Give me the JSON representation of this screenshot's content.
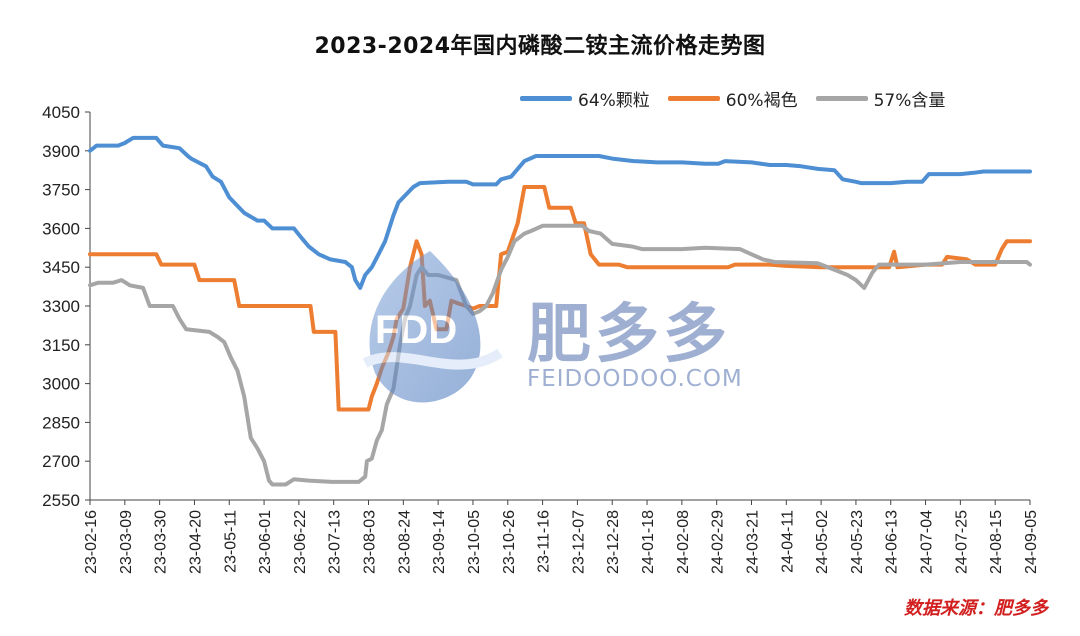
{
  "chart_data": {
    "type": "line",
    "title": "2023-2024年国内磷酸二铵主流价格走势图",
    "xlabel": "",
    "ylabel": "",
    "ylim": [
      2550,
      4050
    ],
    "yticks": [
      2550,
      2700,
      2850,
      3000,
      3150,
      3300,
      3450,
      3600,
      3750,
      3900,
      4050
    ],
    "xticks": [
      "23-02-16",
      "23-03-09",
      "23-03-30",
      "23-04-20",
      "23-05-11",
      "23-06-01",
      "23-06-22",
      "23-07-13",
      "23-08-03",
      "23-08-24",
      "23-09-14",
      "23-10-05",
      "23-10-26",
      "23-11-16",
      "23-12-07",
      "23-12-28",
      "24-01-18",
      "24-02-08",
      "24-02-29",
      "24-03-21",
      "24-04-11",
      "24-05-02",
      "24-05-23",
      "24-06-13",
      "24-07-04",
      "24-07-25",
      "24-08-15",
      "24-09-05"
    ],
    "xrange": [
      "23-02-16",
      "24-09-05"
    ],
    "grid": false,
    "legend_position": "top-right",
    "series": [
      {
        "name": "64%颗粒",
        "color": "#4e8fd4",
        "points": [
          [
            "23-02-16",
            3900
          ],
          [
            "23-02-20",
            3920
          ],
          [
            "23-03-05",
            3920
          ],
          [
            "23-03-09",
            3930
          ],
          [
            "23-03-14",
            3950
          ],
          [
            "23-03-28",
            3950
          ],
          [
            "23-04-01",
            3920
          ],
          [
            "23-04-11",
            3910
          ],
          [
            "23-04-16",
            3880
          ],
          [
            "23-04-18",
            3870
          ],
          [
            "23-04-27",
            3840
          ],
          [
            "23-05-01",
            3800
          ],
          [
            "23-05-06",
            3780
          ],
          [
            "23-05-11",
            3720
          ],
          [
            "23-05-14",
            3700
          ],
          [
            "23-05-20",
            3660
          ],
          [
            "23-05-28",
            3630
          ],
          [
            "23-06-01",
            3630
          ],
          [
            "23-06-06",
            3600
          ],
          [
            "23-06-19",
            3600
          ],
          [
            "23-06-24",
            3560
          ],
          [
            "23-06-28",
            3530
          ],
          [
            "23-07-04",
            3500
          ],
          [
            "23-07-11",
            3480
          ],
          [
            "23-07-20",
            3470
          ],
          [
            "23-07-24",
            3450
          ],
          [
            "23-07-26",
            3400
          ],
          [
            "23-07-29",
            3370
          ],
          [
            "23-08-01",
            3420
          ],
          [
            "23-08-05",
            3450
          ],
          [
            "23-08-09",
            3500
          ],
          [
            "23-08-13",
            3550
          ],
          [
            "23-08-18",
            3650
          ],
          [
            "23-08-21",
            3700
          ],
          [
            "23-08-24",
            3720
          ],
          [
            "23-08-30",
            3760
          ],
          [
            "23-09-03",
            3775
          ],
          [
            "23-09-20",
            3780
          ],
          [
            "23-10-01",
            3780
          ],
          [
            "23-10-05",
            3770
          ],
          [
            "23-10-19",
            3770
          ],
          [
            "23-10-22",
            3790
          ],
          [
            "23-10-28",
            3800
          ],
          [
            "23-11-05",
            3860
          ],
          [
            "23-11-12",
            3880
          ],
          [
            "23-12-01",
            3880
          ],
          [
            "23-12-20",
            3880
          ],
          [
            "23-12-28",
            3870
          ],
          [
            "24-01-10",
            3860
          ],
          [
            "24-01-24",
            3855
          ],
          [
            "24-02-08",
            3855
          ],
          [
            "24-02-22",
            3850
          ],
          [
            "24-03-01",
            3850
          ],
          [
            "24-03-05",
            3860
          ],
          [
            "24-03-21",
            3855
          ],
          [
            "24-04-01",
            3845
          ],
          [
            "24-04-11",
            3845
          ],
          [
            "24-04-20",
            3840
          ],
          [
            "24-04-30",
            3830
          ],
          [
            "24-05-10",
            3825
          ],
          [
            "24-05-15",
            3790
          ],
          [
            "24-05-23",
            3780
          ],
          [
            "24-05-26",
            3775
          ],
          [
            "24-06-13",
            3775
          ],
          [
            "24-06-23",
            3780
          ],
          [
            "24-07-02",
            3780
          ],
          [
            "24-07-06",
            3810
          ],
          [
            "24-07-25",
            3810
          ],
          [
            "24-08-02",
            3815
          ],
          [
            "24-08-08",
            3820
          ],
          [
            "24-09-05",
            3820
          ]
        ]
      },
      {
        "name": "60%褐色",
        "color": "#ed7d31",
        "points": [
          [
            "23-02-16",
            3500
          ],
          [
            "23-03-28",
            3500
          ],
          [
            "23-03-31",
            3460
          ],
          [
            "23-04-20",
            3460
          ],
          [
            "23-04-23",
            3400
          ],
          [
            "23-05-14",
            3400
          ],
          [
            "23-05-17",
            3300
          ],
          [
            "23-06-29",
            3300
          ],
          [
            "23-07-01",
            3200
          ],
          [
            "23-07-14",
            3200
          ],
          [
            "23-07-16",
            2900
          ],
          [
            "23-08-03",
            2900
          ],
          [
            "23-08-05",
            2950
          ],
          [
            "23-08-08",
            3000
          ],
          [
            "23-08-11",
            3060
          ],
          [
            "23-08-15",
            3120
          ],
          [
            "23-08-18",
            3180
          ],
          [
            "23-08-20",
            3250
          ],
          [
            "23-08-24",
            3290
          ],
          [
            "23-08-28",
            3450
          ],
          [
            "23-09-01",
            3550
          ],
          [
            "23-09-04",
            3500
          ],
          [
            "23-09-06",
            3300
          ],
          [
            "23-09-09",
            3320
          ],
          [
            "23-09-13",
            3210
          ],
          [
            "23-09-19",
            3210
          ],
          [
            "23-09-22",
            3320
          ],
          [
            "23-09-26",
            3310
          ],
          [
            "23-10-01",
            3300
          ],
          [
            "23-10-05",
            3290
          ],
          [
            "23-10-09",
            3300
          ],
          [
            "23-10-19",
            3300
          ],
          [
            "23-10-22",
            3500
          ],
          [
            "23-10-26",
            3510
          ],
          [
            "23-11-01",
            3620
          ],
          [
            "23-11-05",
            3760
          ],
          [
            "23-11-17",
            3760
          ],
          [
            "23-11-20",
            3680
          ],
          [
            "23-12-03",
            3680
          ],
          [
            "23-12-06",
            3620
          ],
          [
            "23-12-11",
            3620
          ],
          [
            "23-12-15",
            3500
          ],
          [
            "23-12-20",
            3460
          ],
          [
            "24-01-01",
            3460
          ],
          [
            "24-01-06",
            3450
          ],
          [
            "24-02-08",
            3450
          ],
          [
            "24-03-07",
            3450
          ],
          [
            "24-03-11",
            3460
          ],
          [
            "24-04-01",
            3460
          ],
          [
            "24-04-11",
            3455
          ],
          [
            "24-05-02",
            3450
          ],
          [
            "24-05-23",
            3450
          ],
          [
            "24-06-12",
            3450
          ],
          [
            "24-06-15",
            3510
          ],
          [
            "24-06-17",
            3450
          ],
          [
            "24-07-04",
            3460
          ],
          [
            "24-07-14",
            3460
          ],
          [
            "24-07-17",
            3490
          ],
          [
            "24-07-29",
            3480
          ],
          [
            "24-08-03",
            3460
          ],
          [
            "24-08-15",
            3460
          ],
          [
            "24-08-19",
            3520
          ],
          [
            "24-08-22",
            3550
          ],
          [
            "24-09-05",
            3550
          ]
        ]
      },
      {
        "name": "57%含量",
        "color": "#a6a6a6",
        "points": [
          [
            "23-02-16",
            3380
          ],
          [
            "23-02-21",
            3390
          ],
          [
            "23-03-02",
            3390
          ],
          [
            "23-03-07",
            3400
          ],
          [
            "23-03-12",
            3380
          ],
          [
            "23-03-20",
            3370
          ],
          [
            "23-03-24",
            3300
          ],
          [
            "23-04-07",
            3300
          ],
          [
            "23-04-11",
            3250
          ],
          [
            "23-04-15",
            3210
          ],
          [
            "23-04-29",
            3200
          ],
          [
            "23-05-04",
            3180
          ],
          [
            "23-05-08",
            3160
          ],
          [
            "23-05-12",
            3100
          ],
          [
            "23-05-16",
            3050
          ],
          [
            "23-05-20",
            2950
          ],
          [
            "23-05-24",
            2790
          ],
          [
            "23-05-28",
            2750
          ],
          [
            "23-06-01",
            2700
          ],
          [
            "23-06-04",
            2625
          ],
          [
            "23-06-06",
            2610
          ],
          [
            "23-06-14",
            2610
          ],
          [
            "23-06-19",
            2630
          ],
          [
            "23-06-28",
            2625
          ],
          [
            "23-07-12",
            2620
          ],
          [
            "23-07-28",
            2620
          ],
          [
            "23-08-01",
            2640
          ],
          [
            "23-08-02",
            2700
          ],
          [
            "23-08-05",
            2710
          ],
          [
            "23-08-08",
            2780
          ],
          [
            "23-08-11",
            2820
          ],
          [
            "23-08-14",
            2920
          ],
          [
            "23-08-18",
            2980
          ],
          [
            "23-08-22",
            3150
          ],
          [
            "23-08-25",
            3250
          ],
          [
            "23-08-28",
            3300
          ],
          [
            "23-09-01",
            3420
          ],
          [
            "23-09-04",
            3450
          ],
          [
            "23-09-08",
            3420
          ],
          [
            "23-09-14",
            3420
          ],
          [
            "23-09-25",
            3400
          ],
          [
            "23-10-01",
            3300
          ],
          [
            "23-10-05",
            3270
          ],
          [
            "23-10-09",
            3280
          ],
          [
            "23-10-13",
            3300
          ],
          [
            "23-10-17",
            3350
          ],
          [
            "23-10-22",
            3440
          ],
          [
            "23-10-26",
            3490
          ],
          [
            "23-10-30",
            3550
          ],
          [
            "23-11-05",
            3580
          ],
          [
            "23-11-09",
            3590
          ],
          [
            "23-11-16",
            3610
          ],
          [
            "23-12-10",
            3610
          ],
          [
            "23-12-14",
            3590
          ],
          [
            "23-12-21",
            3580
          ],
          [
            "23-12-28",
            3540
          ],
          [
            "24-01-09",
            3530
          ],
          [
            "24-01-15",
            3520
          ],
          [
            "24-02-08",
            3520
          ],
          [
            "24-02-22",
            3525
          ],
          [
            "24-03-14",
            3520
          ],
          [
            "24-03-21",
            3500
          ],
          [
            "24-03-28",
            3480
          ],
          [
            "24-04-04",
            3470
          ],
          [
            "24-04-30",
            3465
          ],
          [
            "24-05-02",
            3460
          ],
          [
            "24-05-10",
            3440
          ],
          [
            "24-05-18",
            3420
          ],
          [
            "24-05-23",
            3400
          ],
          [
            "24-05-28",
            3370
          ],
          [
            "24-06-02",
            3430
          ],
          [
            "24-06-06",
            3460
          ],
          [
            "24-06-20",
            3460
          ],
          [
            "24-07-04",
            3460
          ],
          [
            "24-07-25",
            3470
          ],
          [
            "24-08-15",
            3470
          ],
          [
            "24-08-19",
            3470
          ],
          [
            "24-09-03",
            3470
          ],
          [
            "24-09-05",
            3460
          ]
        ]
      }
    ]
  },
  "watermark": {
    "logo_text": "FDD",
    "brand": "肥多多",
    "url": "FEIDOODOO.COM"
  },
  "source_note": "数据来源：肥多多",
  "colors": {
    "axis": "#444444",
    "title": "#111111",
    "source_note": "#d21f1f",
    "watermark": "#4f6fae"
  }
}
